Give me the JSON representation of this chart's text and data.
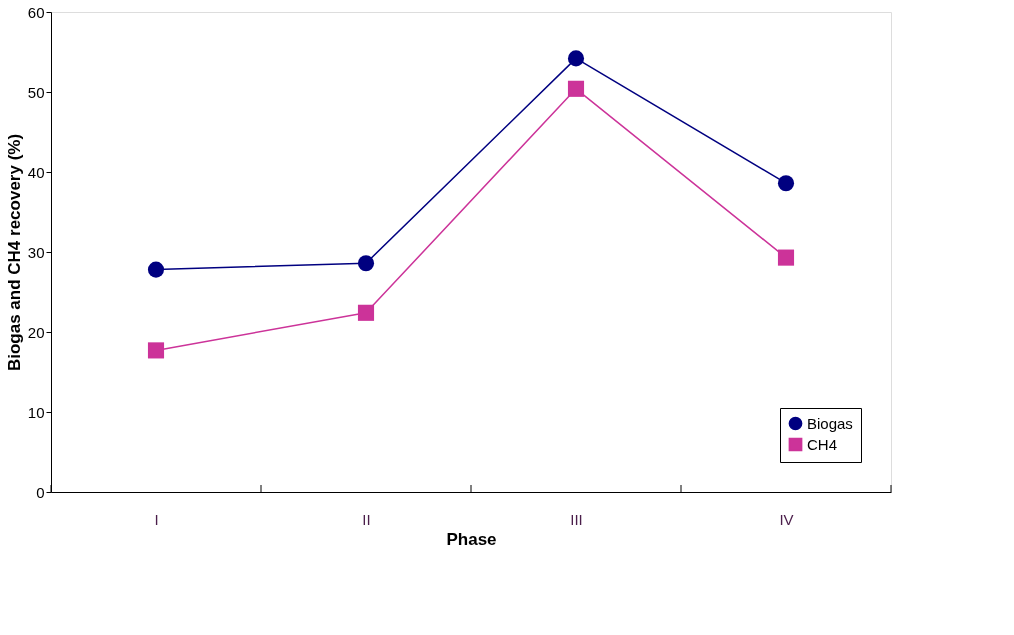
{
  "chart_data": {
    "type": "line",
    "xlabel": "Phase",
    "ylabel": "Biogas and CH4 recovery (%)",
    "categories": [
      "I",
      "II",
      "III",
      "IV"
    ],
    "series": [
      {
        "name": "Biogas",
        "color": "#000080",
        "marker": "circle",
        "values": [
          27.8,
          28.6,
          54.2,
          38.6
        ]
      },
      {
        "name": "CH4",
        "color": "#cc3399",
        "marker": "square",
        "values": [
          17.7,
          22.4,
          50.4,
          29.3
        ]
      }
    ],
    "ylim": [
      0,
      60
    ],
    "yticks": [
      0,
      10,
      20,
      30,
      40,
      50,
      60
    ],
    "grid": false,
    "legend": "bottom right"
  }
}
